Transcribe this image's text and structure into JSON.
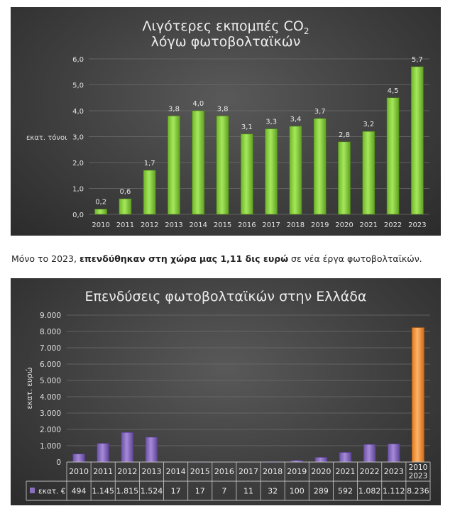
{
  "chart_data": [
    {
      "type": "bar",
      "title": "Λιγότερες εκπομπές CO",
      "title_sub": "2",
      "title_line2": "λόγω φωτοβολταϊκών",
      "ylabel": "εκατ. τόνοι",
      "xlabel": "",
      "ylim": [
        0,
        6
      ],
      "yticks": [
        "0,0",
        "1,0",
        "2,0",
        "3,0",
        "4,0",
        "5,0",
        "6,0"
      ],
      "grid": true,
      "categories": [
        "2010",
        "2011",
        "2012",
        "2013",
        "2014",
        "2015",
        "2016",
        "2017",
        "2018",
        "2019",
        "2020",
        "2021",
        "2022",
        "2023"
      ],
      "values": [
        0.2,
        0.6,
        1.7,
        3.8,
        4.0,
        3.8,
        3.1,
        3.3,
        3.4,
        3.7,
        2.8,
        3.2,
        4.5,
        5.7
      ],
      "data_labels": [
        "0,2",
        "0,6",
        "1,7",
        "3,8",
        "4,0",
        "3,8",
        "3,1",
        "3,3",
        "3,4",
        "3,7",
        "2,8",
        "3,2",
        "4,5",
        "5,7"
      ],
      "bar_color": "#86d03a"
    },
    {
      "type": "bar",
      "title": "Επενδύσεις φωτοβολταϊκών στην Ελλάδα",
      "ylabel": "εκατ. ευρώ",
      "xlabel": "",
      "ylim": [
        0,
        9000
      ],
      "yticks": [
        "0",
        "1.000",
        "2.000",
        "3.000",
        "4.000",
        "5.000",
        "6.000",
        "7.000",
        "8.000",
        "9.000"
      ],
      "grid": true,
      "categories": [
        "2010",
        "2011",
        "2012",
        "2013",
        "2014",
        "2015",
        "2016",
        "2017",
        "2018",
        "2019",
        "2020",
        "2021",
        "2022",
        "2023",
        "2010\n2023"
      ],
      "values": [
        494,
        1145,
        1815,
        1524,
        17,
        17,
        7,
        11,
        32,
        100,
        289,
        592,
        1082,
        1112,
        8236
      ],
      "data_table_row_label": "εκατ. €",
      "data_table_values": [
        "494",
        "1.145",
        "1.815",
        "1.524",
        "17",
        "17",
        "7",
        "11",
        "32",
        "100",
        "289",
        "592",
        "1.082",
        "1.112",
        "8.236"
      ],
      "bar_color": "#8a6fbf",
      "highlight_color": "#f0923a"
    }
  ],
  "caption": {
    "before": "Μόνο το 2023, ",
    "bold": "επενδύθηκαν στη χώρα μας 1,11 δις ευρώ",
    "after": " σε νέα έργα φωτοβολταϊκών."
  }
}
